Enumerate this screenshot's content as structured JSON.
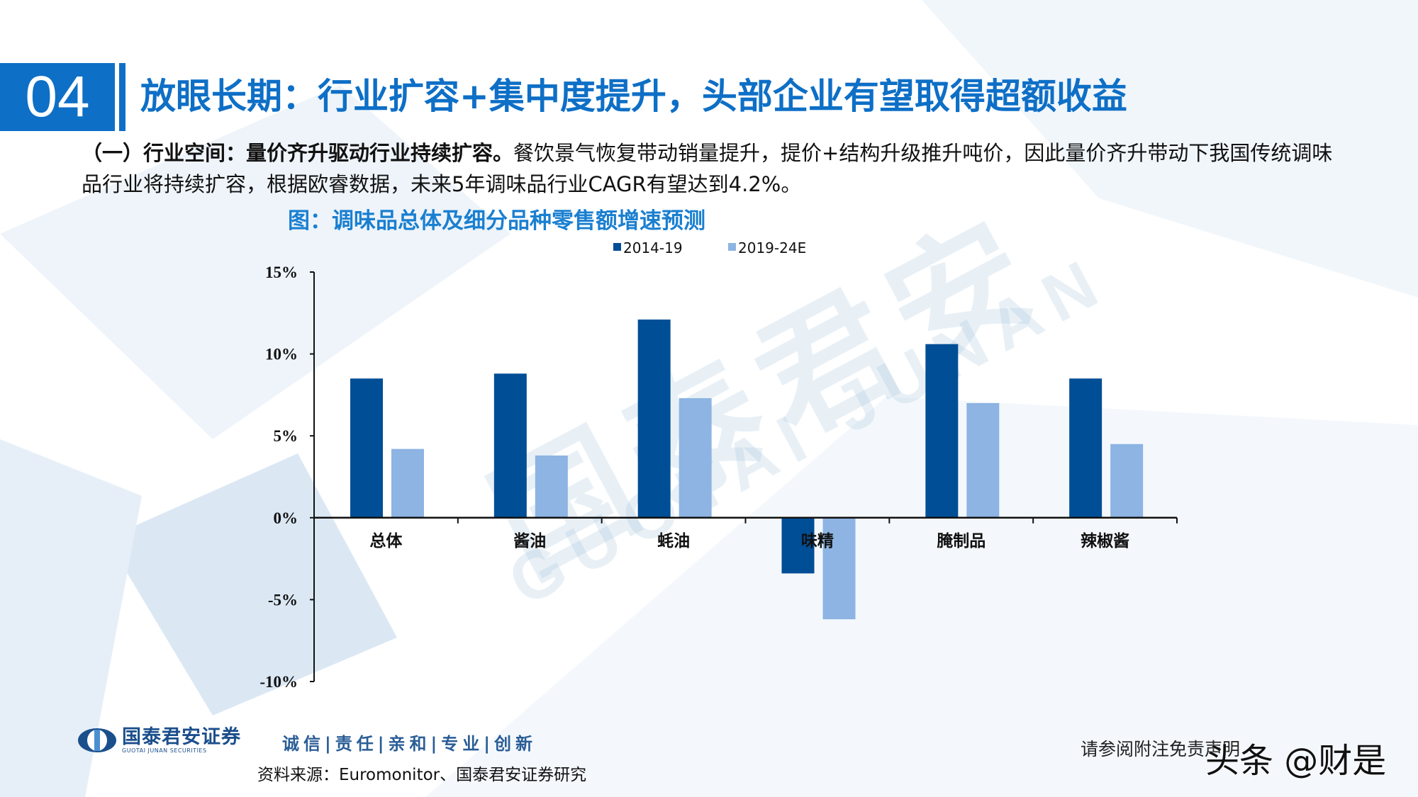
{
  "header": {
    "section_number": "04",
    "title": "放眼长期：行业扩容+集中度提升，头部企业有望取得超额收益"
  },
  "paragraph": {
    "lead": "（一）行业空间：量价齐升驱动行业持续扩容。",
    "body": "餐饮景气恢复带动销量提升，提价+结构升级推升吨价，因此量价齐升带动下我国传统调味品行业将持续扩容，根据欧睿数据，未来5年调味品行业CAGR有望达到4.2%。"
  },
  "figure_caption": "图：调味品总体及细分品种零售额增速预测",
  "chart_data": {
    "type": "bar",
    "title": "",
    "xlabel": "",
    "ylabel": "",
    "categories": [
      "总体",
      "酱油",
      "蚝油",
      "味精",
      "腌制品",
      "辣椒酱"
    ],
    "series": [
      {
        "name": "2014-19",
        "color": "#004e96",
        "values": [
          8.5,
          8.8,
          12.1,
          -3.4,
          10.6,
          8.5
        ]
      },
      {
        "name": "2019-24E",
        "color": "#8db4e2",
        "values": [
          4.2,
          3.8,
          7.3,
          -6.2,
          7.0,
          4.5
        ]
      }
    ],
    "ylim": [
      -10,
      15
    ],
    "yticks": [
      15,
      10,
      5,
      0,
      -5,
      -10
    ],
    "ytick_labels": [
      "15%",
      "10%",
      "5%",
      "0%",
      "-5%",
      "-10%"
    ],
    "unit": "%",
    "grid": false,
    "legend": "top-center"
  },
  "footer": {
    "logo_cn": "国泰君安证券",
    "logo_en": "GUOTAI JUNAN SECURITIES",
    "motto": "诚信|责任|亲和|专业|创新",
    "source": "资料来源：Euromonitor、国泰君安证券研究",
    "disclaimer": "请参阅附注免责声明",
    "toutiao_watermark": "头条 @财是"
  },
  "watermark": {
    "cn": "国泰君安",
    "en": "GUOTAI JUNAN"
  }
}
